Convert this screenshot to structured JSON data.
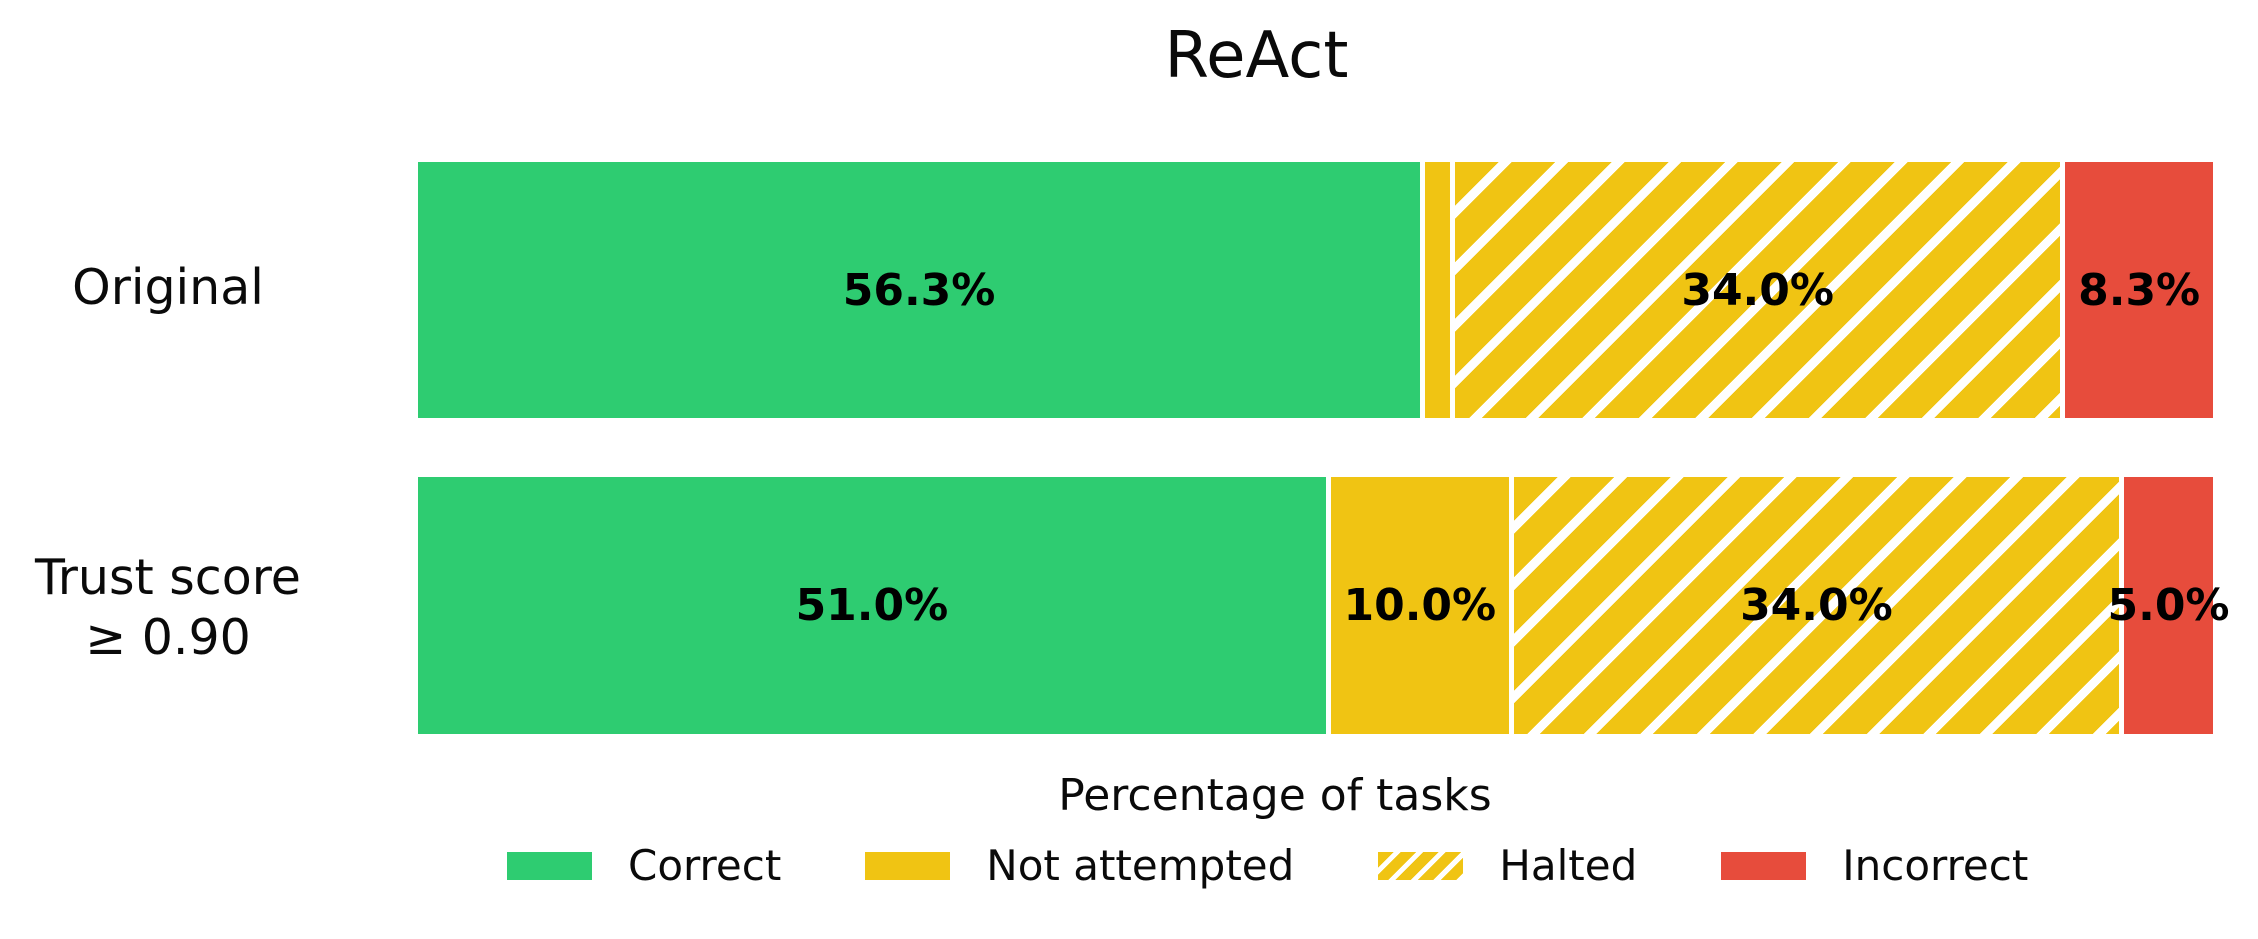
{
  "figure": {
    "title": "ReAct",
    "xlabel": "Percentage of tasks"
  },
  "colors": {
    "correct": "#2ecc71",
    "not_attempted": "#f0c413",
    "halted": "#f0c413",
    "incorrect": "#e74c3c",
    "hatch_stripe": "#ffffff",
    "label_text": "#000000"
  },
  "chart_data": {
    "type": "bar",
    "orientation": "horizontal",
    "stacked": true,
    "title": "ReAct",
    "xlabel": "Percentage of tasks",
    "xlim": [
      0,
      100
    ],
    "grid": false,
    "legend_position": "bottom",
    "categories": [
      {
        "name": "Original",
        "label_lines": [
          "Original"
        ]
      },
      {
        "name": "Trust score ≥ 0.90",
        "label_lines": [
          "Trust score",
          "≥ 0.90"
        ]
      }
    ],
    "series": [
      {
        "name": "Correct",
        "color_key": "correct",
        "hatch": false,
        "values": [
          56.3,
          51.0
        ],
        "bar_labels": [
          "56.3%",
          "51.0%"
        ]
      },
      {
        "name": "Not attempted",
        "color_key": "not_attempted",
        "hatch": false,
        "values": [
          1.4,
          10.0
        ],
        "bar_labels": [
          "",
          "10.0%"
        ]
      },
      {
        "name": "Halted",
        "color_key": "halted",
        "hatch": true,
        "values": [
          34.0,
          34.0
        ],
        "bar_labels": [
          "34.0%",
          "34.0%"
        ]
      },
      {
        "name": "Incorrect",
        "color_key": "incorrect",
        "hatch": false,
        "values": [
          8.3,
          5.0
        ],
        "bar_labels": [
          "8.3%",
          "5.0%"
        ]
      }
    ]
  }
}
